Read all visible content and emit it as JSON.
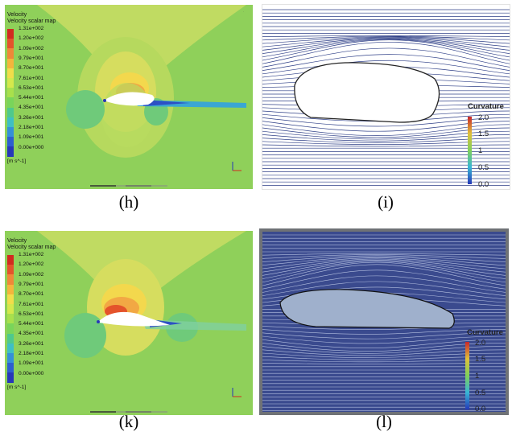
{
  "panels": {
    "h": {
      "caption": "(h)",
      "title_line1": "Velocity",
      "title_line2": "Velocity scalar map",
      "unit": "[m s^-1]"
    },
    "i": {
      "caption": "(i)"
    },
    "k": {
      "caption": "(k)",
      "title_line1": "Velocity",
      "title_line2": "Velocity scalar map",
      "unit": "[m s^-1]"
    },
    "l": {
      "caption": "(l)"
    }
  },
  "velocity_legend": {
    "labels": [
      "1.31e+002",
      "1.20e+002",
      "1.09e+002",
      "9.79e+001",
      "8.70e+001",
      "7.61e+001",
      "6.53e+001",
      "5.44e+001",
      "4.35e+001",
      "3.26e+001",
      "2.18e+001",
      "1.09e+001",
      "0.00e+000"
    ],
    "colors": [
      "#d22b1f",
      "#e4532b",
      "#ef8838",
      "#f5b53c",
      "#f2dd4a",
      "#d5e84c",
      "#a9e04c",
      "#79d55a",
      "#4fc98c",
      "#3fbfc4",
      "#3590d8",
      "#2d5fcf",
      "#2638b8"
    ]
  },
  "curvature_legend": {
    "title": "Curvature",
    "ticks": [
      "2.0",
      "1.5",
      "1",
      "0.5",
      "0.0"
    ]
  },
  "colors": {
    "field_green": "#8fd05a",
    "field_yellow": "#c5dc63",
    "streamline_blue": "#2e3f87",
    "dark_bg": "#3a4a8e"
  }
}
